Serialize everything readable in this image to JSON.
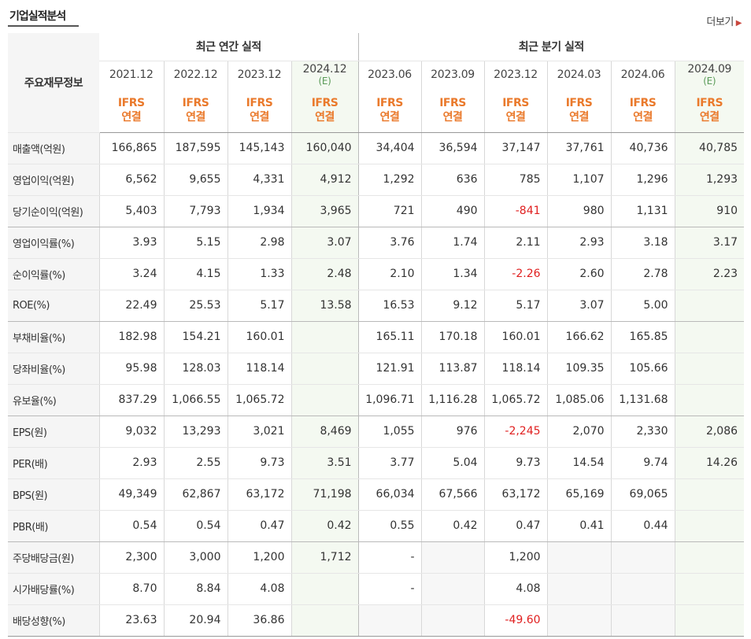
{
  "header": {
    "title": "기업실적분석",
    "more_label": "더보기",
    "more_arrow": "▶"
  },
  "table": {
    "row_header": "주요재무정보",
    "groups": {
      "annual": "최근 연간 실적",
      "quarter": "최근 분기 실적"
    },
    "periods": [
      {
        "label": "2021.12",
        "est": ""
      },
      {
        "label": "2022.12",
        "est": ""
      },
      {
        "label": "2023.12",
        "est": ""
      },
      {
        "label": "2024.12",
        "est": "(E)"
      },
      {
        "label": "2023.06",
        "est": ""
      },
      {
        "label": "2023.09",
        "est": ""
      },
      {
        "label": "2023.12",
        "est": ""
      },
      {
        "label": "2024.03",
        "est": ""
      },
      {
        "label": "2024.06",
        "est": ""
      },
      {
        "label": "2024.09",
        "est": "(E)"
      }
    ],
    "ifrs_line1": "IFRS",
    "ifrs_line2": "연결",
    "rows": [
      {
        "label": "매출액(억원)",
        "values": [
          "166,865",
          "187,595",
          "145,143",
          "160,040",
          "34,404",
          "36,594",
          "37,147",
          "37,761",
          "40,736",
          "40,785"
        ]
      },
      {
        "label": "영업이익(억원)",
        "values": [
          "6,562",
          "9,655",
          "4,331",
          "4,912",
          "1,292",
          "636",
          "785",
          "1,107",
          "1,296",
          "1,293"
        ]
      },
      {
        "label": "당기순이익(억원)",
        "values": [
          "5,403",
          "7,793",
          "1,934",
          "3,965",
          "721",
          "490",
          "-841",
          "980",
          "1,131",
          "910"
        ]
      },
      {
        "label": "영업이익률(%)",
        "values": [
          "3.93",
          "5.15",
          "2.98",
          "3.07",
          "3.76",
          "1.74",
          "2.11",
          "2.93",
          "3.18",
          "3.17"
        ]
      },
      {
        "label": "순이익률(%)",
        "values": [
          "3.24",
          "4.15",
          "1.33",
          "2.48",
          "2.10",
          "1.34",
          "-2.26",
          "2.60",
          "2.78",
          "2.23"
        ]
      },
      {
        "label": "ROE(%)",
        "values": [
          "22.49",
          "25.53",
          "5.17",
          "13.58",
          "16.53",
          "9.12",
          "5.17",
          "3.07",
          "5.00",
          ""
        ]
      },
      {
        "label": "부채비율(%)",
        "values": [
          "182.98",
          "154.21",
          "160.01",
          "",
          "165.11",
          "170.18",
          "160.01",
          "166.62",
          "165.85",
          ""
        ]
      },
      {
        "label": "당좌비율(%)",
        "values": [
          "95.98",
          "128.03",
          "118.14",
          "",
          "121.91",
          "113.87",
          "118.14",
          "109.35",
          "105.66",
          ""
        ]
      },
      {
        "label": "유보율(%)",
        "values": [
          "837.29",
          "1,066.55",
          "1,065.72",
          "",
          "1,096.71",
          "1,116.28",
          "1,065.72",
          "1,085.06",
          "1,131.68",
          ""
        ]
      },
      {
        "label": "EPS(원)",
        "values": [
          "9,032",
          "13,293",
          "3,021",
          "8,469",
          "1,055",
          "976",
          "-2,245",
          "2,070",
          "2,330",
          "2,086"
        ]
      },
      {
        "label": "PER(배)",
        "values": [
          "2.93",
          "2.55",
          "9.73",
          "3.51",
          "3.77",
          "5.04",
          "9.73",
          "14.54",
          "9.74",
          "14.26"
        ]
      },
      {
        "label": "BPS(원)",
        "values": [
          "49,349",
          "62,867",
          "63,172",
          "71,198",
          "66,034",
          "67,566",
          "63,172",
          "65,169",
          "69,065",
          ""
        ]
      },
      {
        "label": "PBR(배)",
        "values": [
          "0.54",
          "0.54",
          "0.47",
          "0.42",
          "0.55",
          "0.42",
          "0.47",
          "0.41",
          "0.44",
          ""
        ]
      },
      {
        "label": "주당배당금(원)",
        "values": [
          "2,300",
          "3,000",
          "1,200",
          "1,712",
          "-",
          "",
          "1,200",
          "",
          "",
          ""
        ]
      },
      {
        "label": "시가배당률(%)",
        "values": [
          "8.70",
          "8.84",
          "4.08",
          "",
          "-",
          "",
          "4.08",
          "",
          "",
          ""
        ]
      },
      {
        "label": "배당성향(%)",
        "values": [
          "23.63",
          "20.94",
          "36.86",
          "",
          "",
          "",
          "-49.60",
          "",
          "",
          ""
        ]
      }
    ]
  },
  "colors": {
    "ifrs": "#ea7a2c",
    "estimate_bg": "#f4f9f1",
    "estimate_text": "#5a9b58",
    "negative": "#e02020"
  }
}
